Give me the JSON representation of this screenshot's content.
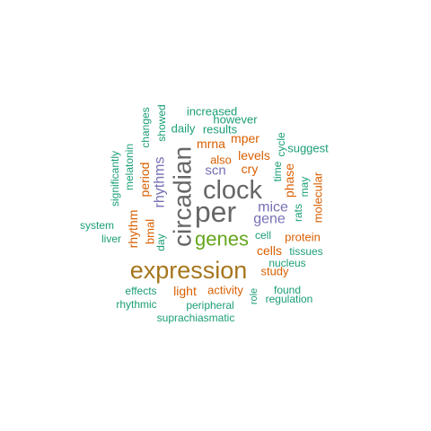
{
  "colors": {
    "teal": "#1b9e77",
    "orange": "#d95f02",
    "purple": "#7570b3",
    "green": "#66a61e",
    "gold": "#a6761d",
    "gray": "#666666"
  },
  "words": [
    {
      "text": "expression",
      "color": "gold"
    },
    {
      "text": "per",
      "color": "gray"
    },
    {
      "text": "clock",
      "color": "gray"
    },
    {
      "text": "circadian",
      "color": "gray"
    },
    {
      "text": "genes",
      "color": "green"
    },
    {
      "text": "mice",
      "color": "purple"
    },
    {
      "text": "gene",
      "color": "purple"
    },
    {
      "text": "rhythms",
      "color": "purple"
    },
    {
      "text": "scn",
      "color": "purple"
    },
    {
      "text": "levels",
      "color": "orange"
    },
    {
      "text": "cry",
      "color": "orange"
    },
    {
      "text": "mrna",
      "color": "orange"
    },
    {
      "text": "mper",
      "color": "orange"
    },
    {
      "text": "also",
      "color": "orange"
    },
    {
      "text": "cells",
      "color": "orange"
    },
    {
      "text": "period",
      "color": "orange"
    },
    {
      "text": "rhythm",
      "color": "orange"
    },
    {
      "text": "bmal",
      "color": "orange"
    },
    {
      "text": "light",
      "color": "orange"
    },
    {
      "text": "activity",
      "color": "orange"
    },
    {
      "text": "phase",
      "color": "orange"
    },
    {
      "text": "molecular",
      "color": "orange"
    },
    {
      "text": "protein",
      "color": "orange"
    },
    {
      "text": "study",
      "color": "orange"
    },
    {
      "text": "increased",
      "color": "teal"
    },
    {
      "text": "however",
      "color": "teal"
    },
    {
      "text": "results",
      "color": "teal"
    },
    {
      "text": "daily",
      "color": "teal"
    },
    {
      "text": "changes",
      "color": "teal"
    },
    {
      "text": "showed",
      "color": "teal"
    },
    {
      "text": "melatonin",
      "color": "teal"
    },
    {
      "text": "significantly",
      "color": "teal"
    },
    {
      "text": "suggest",
      "color": "teal"
    },
    {
      "text": "cycle",
      "color": "teal"
    },
    {
      "text": "time",
      "color": "teal"
    },
    {
      "text": "may",
      "color": "teal"
    },
    {
      "text": "rats",
      "color": "teal"
    },
    {
      "text": "cell",
      "color": "teal"
    },
    {
      "text": "tissues",
      "color": "teal"
    },
    {
      "text": "nucleus",
      "color": "teal"
    },
    {
      "text": "system",
      "color": "teal"
    },
    {
      "text": "liver",
      "color": "teal"
    },
    {
      "text": "day",
      "color": "teal"
    },
    {
      "text": "effects",
      "color": "teal"
    },
    {
      "text": "rhythmic",
      "color": "teal"
    },
    {
      "text": "peripheral",
      "color": "teal"
    },
    {
      "text": "role",
      "color": "teal"
    },
    {
      "text": "found",
      "color": "teal"
    },
    {
      "text": "regulation",
      "color": "teal"
    },
    {
      "text": "suprachiasmatic",
      "color": "teal"
    }
  ]
}
